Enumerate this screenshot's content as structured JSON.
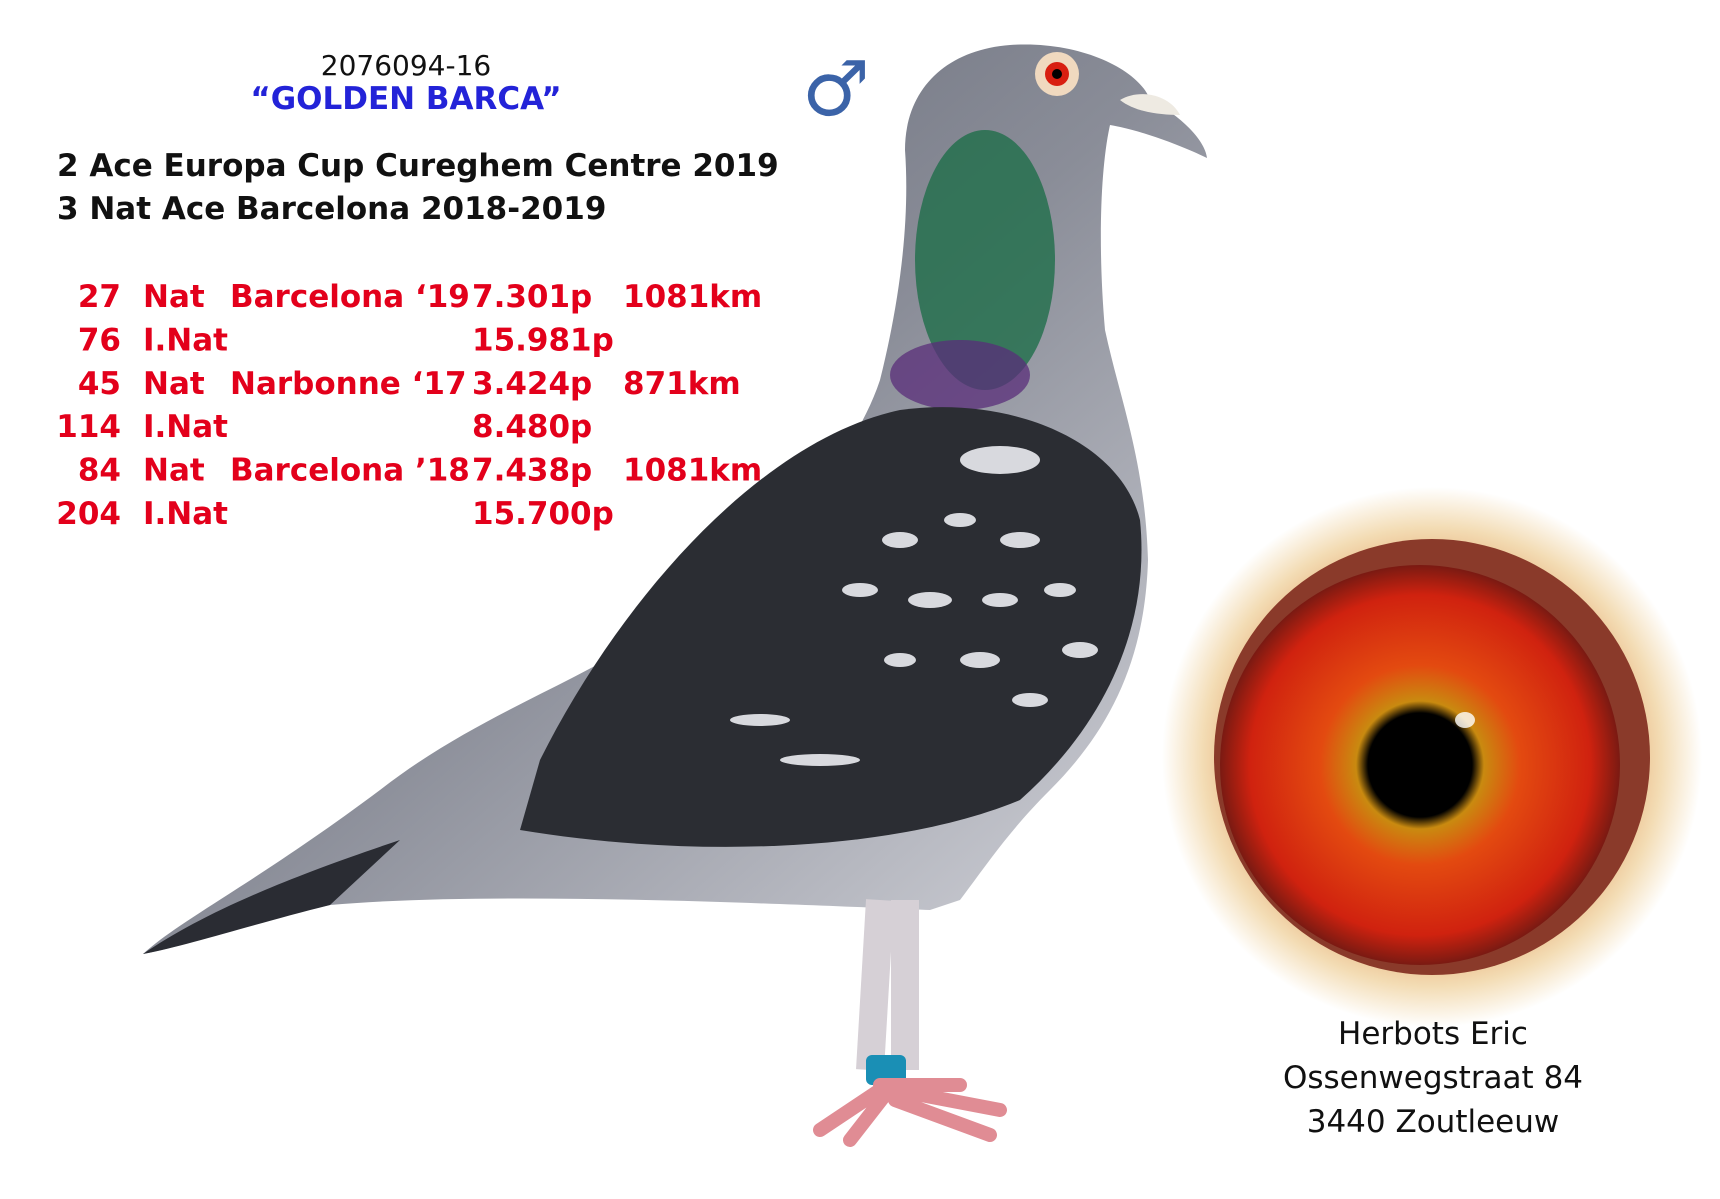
{
  "header": {
    "ring": "2076094-16",
    "name": "“GOLDEN BARCA”",
    "sex_symbol": "♂"
  },
  "achievements": [
    "2 Ace Europa Cup Cureghem Centre 2019",
    "3 Nat Ace Barcelona 2018-2019"
  ],
  "results": [
    {
      "place": 27,
      "level": "Nat",
      "race": "Barcelona ‘19",
      "points": "7.301p",
      "distance": "1081km"
    },
    {
      "place": 76,
      "level": "I.Nat",
      "points": "15.981p"
    },
    {
      "place": 45,
      "level": "Nat",
      "race": "Narbonne ‘17",
      "points": "3.424p",
      "distance": "871km"
    },
    {
      "place": 114,
      "level": "I.Nat",
      "points": "8.480p"
    },
    {
      "place": 84,
      "level": "Nat",
      "race": "Barcelona ’18",
      "points": "7.438p",
      "distance": "1081km"
    },
    {
      "place": 204,
      "level": "I.Nat",
      "points": "15.700p"
    }
  ],
  "owner": {
    "name": "Herbots Eric",
    "street": "Ossenwegstraat 84",
    "city": "3440 Zoutleeuw"
  }
}
